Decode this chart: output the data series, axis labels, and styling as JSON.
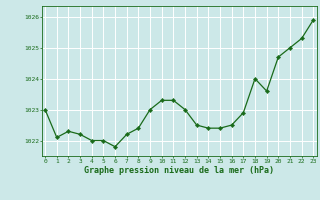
{
  "x": [
    0,
    1,
    2,
    3,
    4,
    5,
    6,
    7,
    8,
    9,
    10,
    11,
    12,
    13,
    14,
    15,
    16,
    17,
    18,
    19,
    20,
    21,
    22,
    23
  ],
  "y": [
    1023.0,
    1022.1,
    1022.3,
    1022.2,
    1022.0,
    1022.0,
    1021.8,
    1022.2,
    1022.4,
    1023.0,
    1023.3,
    1023.3,
    1023.0,
    1022.5,
    1022.4,
    1022.4,
    1022.5,
    1022.9,
    1024.0,
    1023.6,
    1024.7,
    1025.0,
    1025.3,
    1025.9
  ],
  "line_color": "#1a6b1a",
  "marker": "D",
  "marker_size": 2.2,
  "bg_color": "#cce8e8",
  "grid_color": "#ffffff",
  "xlabel": "Graphe pression niveau de la mer (hPa)",
  "xlabel_color": "#1a6b1a",
  "tick_color": "#1a6b1a",
  "label_fontsize": 4.5,
  "xlabel_fontsize": 6.0,
  "ylim": [
    1021.5,
    1026.35
  ],
  "yticks": [
    1022,
    1023,
    1024,
    1025,
    1026
  ],
  "xticks": [
    0,
    1,
    2,
    3,
    4,
    5,
    6,
    7,
    8,
    9,
    10,
    11,
    12,
    13,
    14,
    15,
    16,
    17,
    18,
    19,
    20,
    21,
    22,
    23
  ],
  "xlim": [
    -0.3,
    23.3
  ]
}
